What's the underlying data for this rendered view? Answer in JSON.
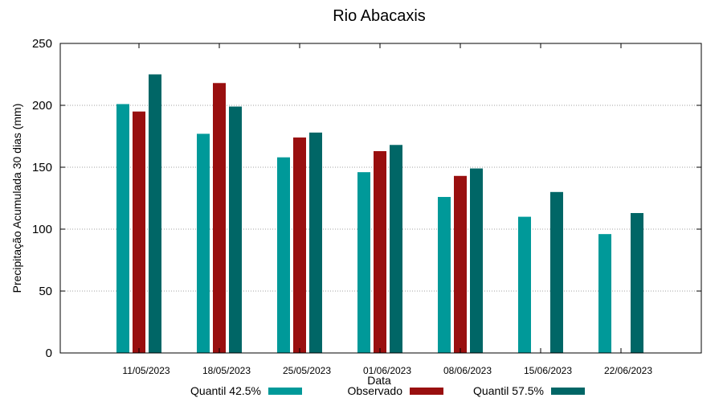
{
  "chart_data": {
    "type": "bar",
    "title": "Rio Abacaxis",
    "xlabel": "Data",
    "ylabel": "Precipitação Acumulada 30 dias (mm)",
    "ylim": [
      0,
      250
    ],
    "yticks": [
      0,
      50,
      100,
      150,
      200,
      250
    ],
    "grid": true,
    "categories": [
      "11/05/2023",
      "18/05/2023",
      "25/05/2023",
      "01/06/2023",
      "08/06/2023",
      "15/06/2023",
      "22/06/2023"
    ],
    "series": [
      {
        "name": "Quantil 42.5%",
        "color": "#009999",
        "values": [
          201,
          177,
          158,
          146,
          126,
          110,
          96
        ]
      },
      {
        "name": "Observado",
        "color": "#990f0f",
        "values": [
          195,
          218,
          174,
          163,
          143,
          null,
          null
        ]
      },
      {
        "name": "Quantil 57.5%",
        "color": "#006666",
        "values": [
          225,
          199,
          178,
          168,
          149,
          130,
          113
        ]
      }
    ],
    "legend_position": "bottom"
  }
}
